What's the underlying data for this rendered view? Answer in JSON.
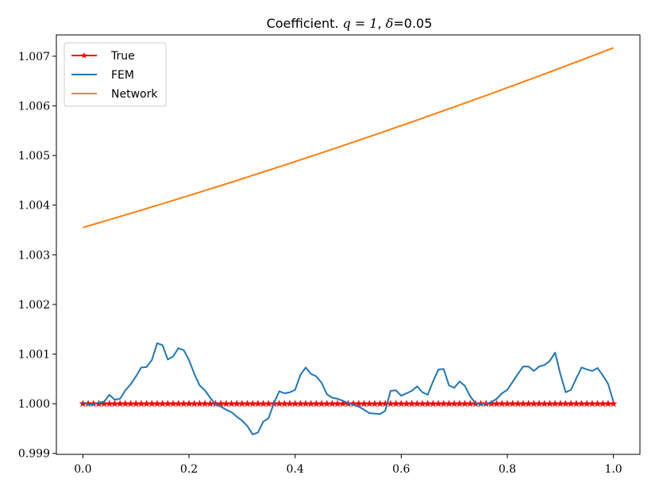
{
  "chart_data": {
    "type": "line",
    "title": {
      "prefix": "Coefficient. ",
      "q_math": "q = 1",
      "separator": ", ",
      "delta_math": "δ",
      "delta_value": "=0.05"
    },
    "xlabel": "",
    "ylabel": "",
    "xlim": [
      -0.05,
      1.05
    ],
    "ylim": [
      0.99898,
      1.00743
    ],
    "xticks": [
      0.0,
      0.2,
      0.4,
      0.6,
      0.8,
      1.0
    ],
    "xtick_labels": [
      "0.0",
      "0.2",
      "0.4",
      "0.6",
      "0.8",
      "1.0"
    ],
    "yticks": [
      0.999,
      1.0,
      1.001,
      1.002,
      1.003,
      1.004,
      1.005,
      1.006,
      1.007
    ],
    "ytick_labels": [
      "0.999",
      "1.000",
      "1.001",
      "1.002",
      "1.003",
      "1.004",
      "1.005",
      "1.006",
      "1.007"
    ],
    "grid": false,
    "legend_position": "top-left",
    "series": [
      {
        "name": "True",
        "color": "#ff0000",
        "marker": "star",
        "x_start": 0.0,
        "x_end": 1.0,
        "n_points": 101,
        "constant_value": 1.0
      },
      {
        "name": "FEM",
        "color": "#1f77b4",
        "x": [
          0.0,
          0.01,
          0.02,
          0.03,
          0.04,
          0.05,
          0.06,
          0.07,
          0.08,
          0.09,
          0.1,
          0.11,
          0.12,
          0.13,
          0.14,
          0.15,
          0.16,
          0.17,
          0.18,
          0.19,
          0.2,
          0.21,
          0.22,
          0.23,
          0.24,
          0.25,
          0.26,
          0.27,
          0.28,
          0.29,
          0.3,
          0.31,
          0.32,
          0.33,
          0.34,
          0.35,
          0.36,
          0.37,
          0.38,
          0.39,
          0.4,
          0.41,
          0.42,
          0.43,
          0.44,
          0.45,
          0.46,
          0.47,
          0.48,
          0.49,
          0.5,
          0.51,
          0.52,
          0.53,
          0.54,
          0.55,
          0.56,
          0.57,
          0.58,
          0.59,
          0.6,
          0.61,
          0.62,
          0.63,
          0.64,
          0.65,
          0.66,
          0.67,
          0.68,
          0.69,
          0.7,
          0.71,
          0.72,
          0.73,
          0.74,
          0.75,
          0.76,
          0.77,
          0.78,
          0.79,
          0.8,
          0.81,
          0.82,
          0.83,
          0.84,
          0.85,
          0.86,
          0.87,
          0.88,
          0.89,
          0.9,
          0.91,
          0.92,
          0.93,
          0.94,
          0.95,
          0.96,
          0.97,
          0.98,
          0.99,
          1.0
        ],
        "y": [
          1.00003,
          0.99998,
          0.99999,
          1.00002,
          1.00004,
          1.00018,
          1.00008,
          1.0001,
          1.00027,
          1.00039,
          1.00055,
          1.00073,
          1.00074,
          1.00088,
          1.00122,
          1.00118,
          1.00089,
          1.00095,
          1.00112,
          1.00108,
          1.00088,
          1.0006,
          1.00037,
          1.00027,
          1.00012,
          0.99999,
          0.99994,
          0.99988,
          0.99983,
          0.99974,
          0.99966,
          0.99955,
          0.99938,
          0.99942,
          0.99964,
          0.99971,
          1.00001,
          1.00025,
          1.00021,
          1.00023,
          1.00028,
          1.00058,
          1.00073,
          1.0006,
          1.00055,
          1.00042,
          1.00019,
          1.00012,
          1.0001,
          1.00006,
          1.00001,
          0.99998,
          0.99994,
          0.99988,
          0.99981,
          0.9998,
          0.99979,
          0.99986,
          1.00026,
          1.00027,
          1.00016,
          1.00021,
          1.00026,
          1.00035,
          1.00023,
          1.00018,
          1.00045,
          1.00069,
          1.0007,
          1.00037,
          1.00032,
          1.00045,
          1.00036,
          1.00015,
          1.00001,
          0.99999,
          1.0,
          1.00003,
          1.0001,
          1.00021,
          1.00028,
          1.00044,
          1.0006,
          1.00075,
          1.00075,
          1.00066,
          1.00075,
          1.00078,
          1.00086,
          1.00103,
          1.0006,
          1.00023,
          1.00028,
          1.00051,
          1.00073,
          1.00069,
          1.00066,
          1.00072,
          1.00057,
          1.0004,
          1.00004
        ]
      },
      {
        "name": "Network",
        "color": "#ff7f0e",
        "x_start": 0.0,
        "x_end": 1.0,
        "n_points": 101,
        "y0": 1.00355,
        "y1": 1.00717,
        "curvature": 0.0005
      }
    ]
  }
}
